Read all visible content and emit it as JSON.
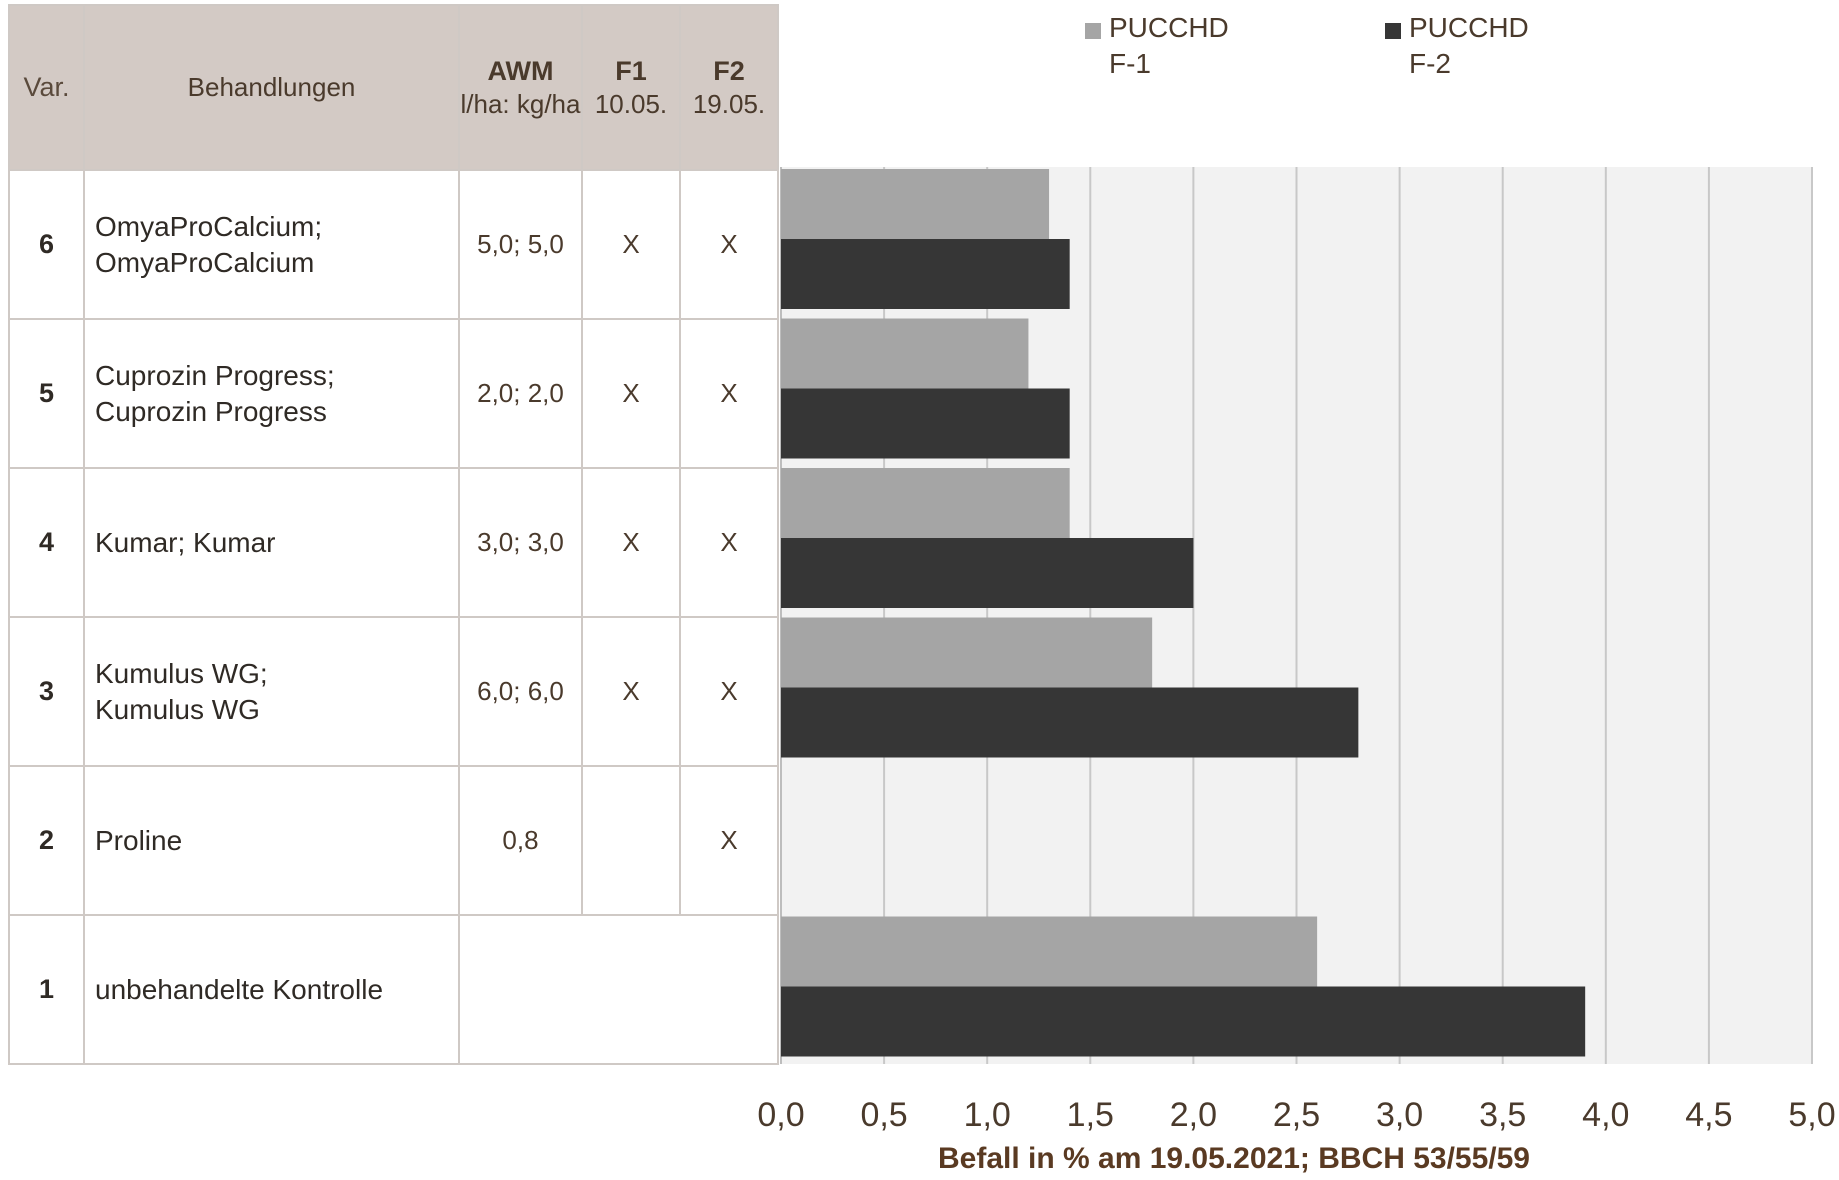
{
  "table": {
    "headers": {
      "var": "Var.",
      "treatment": "Behandlungen",
      "awm": "AWM",
      "awm_unit": "l/ha: kg/ha",
      "f1": "F1",
      "f1_date": "10.05.",
      "f2": "F2",
      "f2_date": "19.05."
    },
    "rows": [
      {
        "var": "6",
        "treatment_line1": "OmyaProCalcium;",
        "treatment_line2": "OmyaProCalcium",
        "awm": "5,0; 5,0",
        "f1": "X",
        "f2": "X"
      },
      {
        "var": "5",
        "treatment_line1": "Cuprozin Progress;",
        "treatment_line2": "Cuprozin Progress",
        "awm": "2,0; 2,0",
        "f1": "X",
        "f2": "X"
      },
      {
        "var": "4",
        "treatment_line1": "Kumar; Kumar",
        "treatment_line2": "",
        "awm": "3,0; 3,0",
        "f1": "X",
        "f2": "X"
      },
      {
        "var": "3",
        "treatment_line1": "Kumulus WG;",
        "treatment_line2": "Kumulus WG",
        "awm": "6,0; 6,0",
        "f1": "X",
        "f2": "X"
      },
      {
        "var": "2",
        "treatment_line1": "Proline",
        "treatment_line2": "",
        "awm": "0,8",
        "f1": "",
        "f2": "X"
      },
      {
        "var": "1",
        "treatment_line1": "unbehandelte Kontrolle",
        "treatment_line2": "",
        "awm": "",
        "f1": "",
        "f2": ""
      }
    ]
  },
  "chart_data": {
    "type": "bar",
    "orientation": "horizontal",
    "categories": [
      "6",
      "5",
      "4",
      "3",
      "2",
      "1"
    ],
    "series": [
      {
        "name_line1": "PUCCHD",
        "name_line2": "F-1",
        "color": "#a5a5a5",
        "values": [
          1.3,
          1.2,
          1.4,
          1.8,
          0,
          2.6
        ]
      },
      {
        "name_line1": "PUCCHD",
        "name_line2": "F-2",
        "color": "#363636",
        "values": [
          1.4,
          1.4,
          2.0,
          2.8,
          0,
          3.9
        ]
      }
    ],
    "xlim": [
      0,
      5
    ],
    "xticks": [
      "0,0",
      "0,5",
      "1,0",
      "1,5",
      "2,0",
      "2,5",
      "3,0",
      "3,5",
      "4,0",
      "4,5",
      "5,0"
    ],
    "xlabel": "Befall in % am 19.05.2021; BBCH 53/55/59",
    "grid": true,
    "legend_position": "top",
    "plot_background": "#f2f2f2",
    "gridline_color": "#c8c8c8"
  }
}
